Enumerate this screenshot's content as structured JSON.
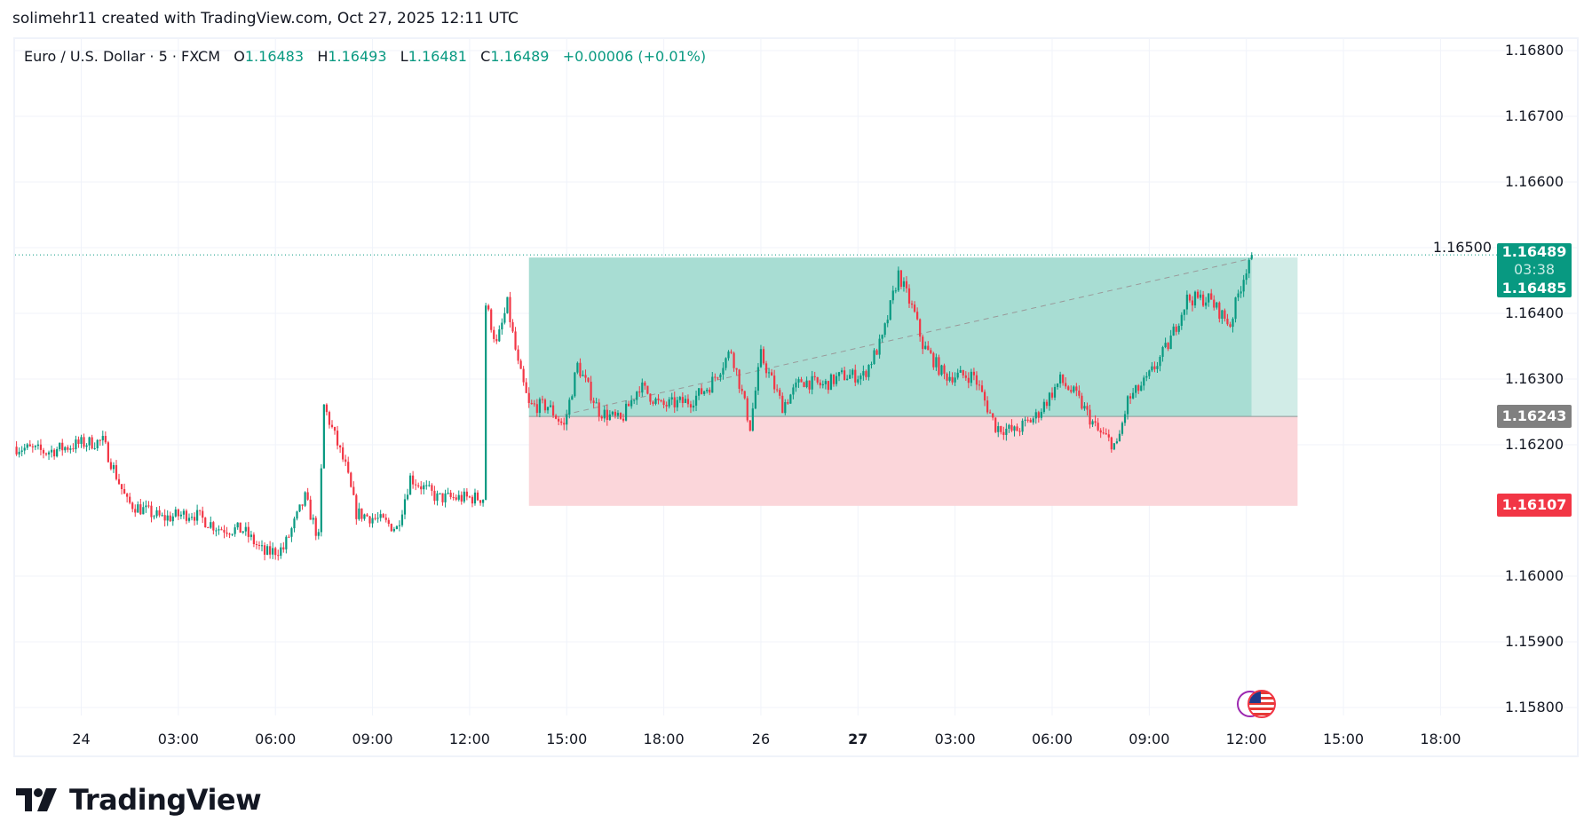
{
  "caption": "solimehr11 created with TradingView.com, Oct 27, 2025 12:11 UTC",
  "legend": {
    "symbol": "Euro / U.S. Dollar · 5 · FXCM",
    "o_label": "O",
    "o": "1.16483",
    "h_label": "H",
    "h": "1.16493",
    "l_label": "L",
    "l": "1.16481",
    "c_label": "C",
    "c": "1.16489",
    "change": "+0.00006 (+0.01%)"
  },
  "colors": {
    "up": "#089981",
    "down": "#f23645",
    "profit_zone": "#a8ddd3",
    "profit_zone_future": "#d1ece7",
    "loss_zone": "#fbd6da",
    "entry_tag": "#808080"
  },
  "price_axis": [
    "1.16800",
    "1.16700",
    "1.16600",
    "1.16500",
    "1.16400",
    "1.16300",
    "1.16200",
    "1.16000",
    "1.15900",
    "1.15800"
  ],
  "time_axis": [
    {
      "label": "24",
      "time": "10-24 00:00",
      "bold": false
    },
    {
      "label": "03:00",
      "time": "10-24 03:00",
      "bold": false
    },
    {
      "label": "06:00",
      "time": "10-24 06:00",
      "bold": false
    },
    {
      "label": "09:00",
      "time": "10-24 09:00",
      "bold": false
    },
    {
      "label": "12:00",
      "time": "10-24 12:00",
      "bold": false
    },
    {
      "label": "15:00",
      "time": "10-24 15:00",
      "bold": false
    },
    {
      "label": "18:00",
      "time": "10-24 18:00",
      "bold": false
    },
    {
      "label": "26",
      "time": "10-26 21:00",
      "bold": false
    },
    {
      "label": "27",
      "time": "10-27 00:00",
      "bold": true
    },
    {
      "label": "03:00",
      "time": "10-27 03:00",
      "bold": false
    },
    {
      "label": "06:00",
      "time": "10-27 06:00",
      "bold": false
    },
    {
      "label": "09:00",
      "time": "10-27 09:00",
      "bold": false
    },
    {
      "label": "12:00",
      "time": "10-27 12:00",
      "bold": false
    },
    {
      "label": "15:00",
      "time": "10-27 15:00",
      "bold": false
    },
    {
      "label": "18:00",
      "time": "10-27 18:00",
      "bold": false
    }
  ],
  "tags": {
    "last_price": "1.16489",
    "countdown": "03:38",
    "target": "1.16485",
    "entry": "1.16243",
    "stop": "1.16107"
  },
  "chart_data": {
    "type": "candlestick",
    "interval": "5",
    "ylim": [
      1.1578,
      1.1683
    ],
    "close_path": [
      [
        "10-23 21:55",
        1.16197
      ],
      [
        "10-23 22:55",
        1.16189
      ],
      [
        "10-24 00:00",
        1.16202
      ],
      [
        "10-24 00:40",
        1.16205
      ],
      [
        "10-24 01:25",
        1.16112
      ],
      [
        "10-24 02:30",
        1.16088
      ],
      [
        "10-24 03:25",
        1.16096
      ],
      [
        "10-24 04:15",
        1.16073
      ],
      [
        "10-24 05:00",
        1.1607
      ],
      [
        "10-24 05:40",
        1.16034
      ],
      [
        "10-24 06:15",
        1.16042
      ],
      [
        "10-24 06:55",
        1.16119
      ],
      [
        "10-24 07:20",
        1.16057
      ],
      [
        "10-24 07:30",
        1.16259
      ],
      [
        "10-24 08:10",
        1.16166
      ],
      [
        "10-24 08:30",
        1.16096
      ],
      [
        "10-24 09:05",
        1.16088
      ],
      [
        "10-24 09:45",
        1.16073
      ],
      [
        "10-24 10:10",
        1.1615
      ],
      [
        "10-24 11:00",
        1.16119
      ],
      [
        "10-24 11:55",
        1.16119
      ],
      [
        "10-24 12:25",
        1.16119
      ],
      [
        "10-24 12:30",
        1.16414
      ],
      [
        "10-24 12:50",
        1.16352
      ],
      [
        "10-24 13:10",
        1.16414
      ],
      [
        "10-24 13:30",
        1.16321
      ],
      [
        "10-24 13:50",
        1.16259
      ],
      [
        "10-24 14:25",
        1.16259
      ],
      [
        "10-24 14:55",
        1.16228
      ],
      [
        "10-24 15:20",
        1.16321
      ],
      [
        "10-24 16:00",
        1.16251
      ],
      [
        "10-24 16:40",
        1.16236
      ],
      [
        "10-24 17:15",
        1.1629
      ],
      [
        "10-24 17:55",
        1.16259
      ],
      [
        "10-24 18:50",
        1.16267
      ],
      [
        "10-24 19:25",
        1.1629
      ],
      [
        "10-24 20:05",
        1.16344
      ],
      [
        "10-24 20:40",
        1.16228
      ],
      [
        "10-26 21:00",
        1.16336
      ],
      [
        "10-26 21:40",
        1.16259
      ],
      [
        "10-26 22:15",
        1.16298
      ],
      [
        "10-26 22:55",
        1.1629
      ],
      [
        "10-26 23:30",
        1.16305
      ],
      [
        "10-27 00:10",
        1.16305
      ],
      [
        "10-27 00:45",
        1.1636
      ],
      [
        "10-27 01:15",
        1.1646
      ],
      [
        "10-27 01:45",
        1.16398
      ],
      [
        "10-27 02:00",
        1.16352
      ],
      [
        "10-27 02:40",
        1.16305
      ],
      [
        "10-27 03:35",
        1.16305
      ],
      [
        "10-27 04:15",
        1.16228
      ],
      [
        "10-27 04:50",
        1.1622
      ],
      [
        "10-27 05:30",
        1.16243
      ],
      [
        "10-27 06:15",
        1.16298
      ],
      [
        "10-27 06:45",
        1.16274
      ],
      [
        "10-27 07:25",
        1.1622
      ],
      [
        "10-27 08:00",
        1.16197
      ],
      [
        "10-27 08:20",
        1.16267
      ],
      [
        "10-27 08:55",
        1.16298
      ],
      [
        "10-27 09:35",
        1.16352
      ],
      [
        "10-27 10:10",
        1.16422
      ],
      [
        "10-27 10:50",
        1.16422
      ],
      [
        "10-27 11:30",
        1.16383
      ],
      [
        "10-27 11:45",
        1.16429
      ],
      [
        "10-27 12:05",
        1.16483
      ]
    ],
    "last_bar": {
      "time": "10-27 12:10",
      "open": 1.16483,
      "high": 1.16493,
      "low": 1.16481,
      "close": 1.16489
    },
    "long_position": {
      "start": "10-24 13:50",
      "end": "10-27 13:35",
      "entry": 1.16243,
      "target": 1.16485,
      "stop": 1.16107
    }
  },
  "event_icon": "us-economic-event-icon",
  "logo": "TradingView"
}
